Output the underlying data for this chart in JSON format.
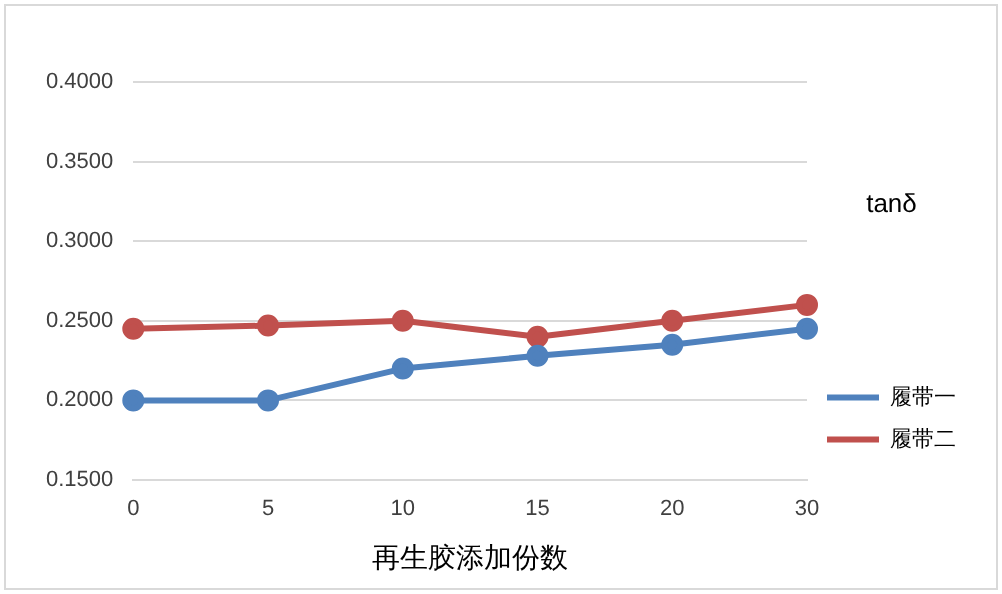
{
  "chart_data": {
    "type": "line",
    "xlabel": "再生胶添加份数",
    "legend_title": "tanδ",
    "categories": [
      "0",
      "5",
      "10",
      "15",
      "20",
      "30"
    ],
    "series": [
      {
        "name": "履带一",
        "color": "#4f81bd",
        "values": [
          0.2,
          0.2,
          0.22,
          0.228,
          0.235,
          0.245
        ]
      },
      {
        "name": "履带二",
        "color": "#c0504d",
        "values": [
          0.245,
          0.247,
          0.25,
          0.24,
          0.25,
          0.26
        ]
      }
    ],
    "ylim": [
      0.15,
      0.4
    ],
    "yticks": [
      {
        "value": 0.15,
        "label": "0.1500"
      },
      {
        "value": 0.2,
        "label": "0.2000"
      },
      {
        "value": 0.25,
        "label": "0.2500"
      },
      {
        "value": 0.3,
        "label": "0.3000"
      },
      {
        "value": 0.35,
        "label": "0.3500"
      },
      {
        "value": 0.4,
        "label": "0.4000"
      }
    ],
    "grid": "y",
    "legend": "right",
    "marker": "circle",
    "line_style": "solid"
  }
}
